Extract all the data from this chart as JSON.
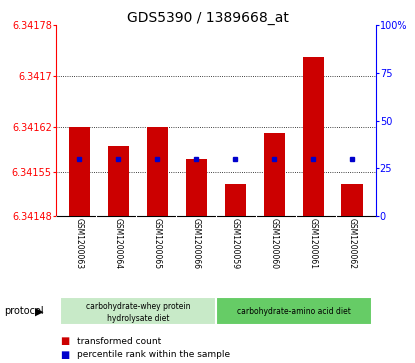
{
  "title": "GDS5390 / 1389668_at",
  "samples": [
    "GSM1200063",
    "GSM1200064",
    "GSM1200065",
    "GSM1200066",
    "GSM1200059",
    "GSM1200060",
    "GSM1200061",
    "GSM1200062"
  ],
  "bar_values": [
    6.34162,
    6.34159,
    6.34162,
    6.34157,
    6.34153,
    6.34161,
    6.34173,
    6.34153
  ],
  "blue_dot_values": [
    6.34157,
    6.34157,
    6.34157,
    6.34157,
    6.34157,
    6.34157,
    6.34157,
    6.34157
  ],
  "y_min": 6.34148,
  "y_max": 6.34178,
  "y_ticks": [
    6.34148,
    6.34155,
    6.34162,
    6.3417,
    6.34178
  ],
  "y_tick_labels": [
    "6.34148",
    "6.34155",
    "6.34162",
    "6.3417",
    "6.34178"
  ],
  "y2_ticks": [
    0,
    25,
    50,
    75,
    100
  ],
  "y2_tick_labels": [
    "0",
    "25",
    "50",
    "75",
    "100%"
  ],
  "grid_lines": [
    6.34155,
    6.34162,
    6.3417
  ],
  "bar_color": "#cc0000",
  "dot_color": "#0000cc",
  "group1_label_line1": "carbohydrate-whey protein",
  "group1_label_line2": "hydrolysate diet",
  "group2_label": "carbohydrate-amino acid diet",
  "group1_indices": [
    0,
    1,
    2,
    3
  ],
  "group2_indices": [
    4,
    5,
    6,
    7
  ],
  "group1_color": "#c8eac8",
  "group2_color": "#66cc66",
  "protocol_label": "protocol",
  "legend_bar_label": "transformed count",
  "legend_dot_label": "percentile rank within the sample",
  "label_bg_color": "#d8d8d8",
  "plot_bg_color": "#ffffff",
  "title_fontsize": 10,
  "tick_fontsize": 7
}
